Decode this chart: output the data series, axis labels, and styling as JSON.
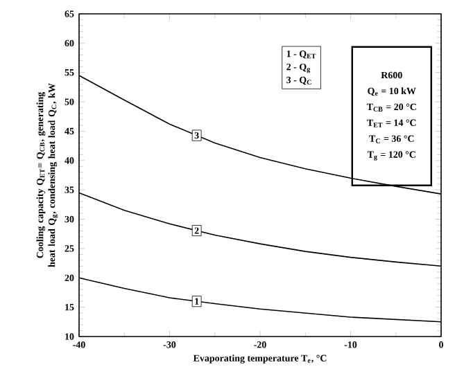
{
  "chart_data": {
    "type": "line",
    "xlabel": "Evaporating temperature T$_{e}$, °C",
    "ylabel": "Cooling capacity Q$_{ET}$= Q$_{CB}$, generating heat load Q$_{g}$, condensing heat load Q$_{C}$, kW",
    "x": [
      -40,
      -35,
      -30,
      -25,
      -20,
      -15,
      -10,
      -5,
      0
    ],
    "series": [
      {
        "name": "1",
        "color": "#000000",
        "values": [
          20,
          18.2,
          16.6,
          15.6,
          14.7,
          14.0,
          13.3,
          12.9,
          12.5
        ]
      },
      {
        "name": "2",
        "color": "#000000",
        "values": [
          34.5,
          31.5,
          29.2,
          27.3,
          25.8,
          24.5,
          23.5,
          22.7,
          22
        ]
      },
      {
        "name": "3",
        "color": "#000000",
        "values": [
          54.5,
          50.3,
          46.2,
          43.0,
          40.5,
          38.6,
          37.0,
          35.6,
          34.3
        ]
      }
    ],
    "annotations": [
      "1  -  Q$_{ET}$",
      "2  -  Q$_{g}$",
      "3  -  Q$_{C}$",
      "**R600**",
      "Q$_{e}$ = 10 kW",
      "T$_{CB}$ = 20 °C",
      "T$_{ET}$ = 14 °C",
      "T$_{C}$  = 36 °C",
      "T$_{g}$ = 120 °C"
    ],
    "xlim": [
      -40,
      0
    ],
    "xticks": [
      -40,
      -30,
      -20,
      -10,
      0
    ],
    "ylim": [
      10,
      65
    ],
    "yticks": [
      10,
      15,
      20,
      25,
      30,
      35,
      40,
      45,
      50,
      55,
      60,
      65
    ],
    "grid": false,
    "legend": false,
    "marker": "none",
    "line_style": "solid"
  }
}
